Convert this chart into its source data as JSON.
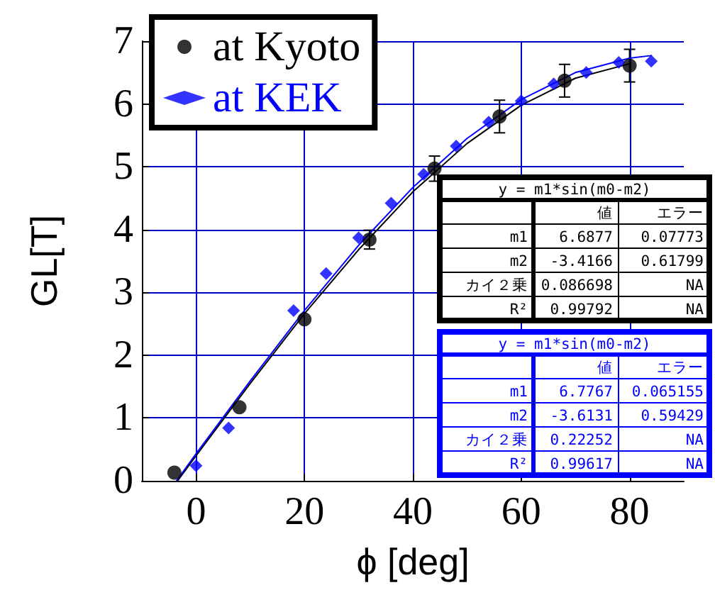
{
  "chart_data": {
    "type": "scatter",
    "xlabel": "ϕ [deg]",
    "ylabel": "GL[T]",
    "xlim": [
      -10,
      90
    ],
    "xticks": [
      0,
      20,
      40,
      60,
      80
    ],
    "ylim": [
      0,
      7
    ],
    "yticks": [
      0,
      1,
      2,
      3,
      4,
      5,
      6,
      7
    ],
    "grid": true,
    "legend": "top left",
    "series": [
      {
        "name": "at Kyoto",
        "color": "#000000",
        "marker": "circle",
        "x": [
          -4,
          8,
          20,
          32,
          44,
          56,
          68,
          80
        ],
        "values": [
          0.13,
          1.17,
          2.57,
          3.84,
          4.97,
          5.8,
          6.37,
          6.61
        ],
        "errors": [
          null,
          null,
          null,
          0.15,
          0.2,
          0.26,
          0.26,
          0.26
        ]
      },
      {
        "name": "at KEK",
        "color": "#0000ff",
        "marker": "diamond",
        "x": [
          0,
          6,
          18,
          24,
          30,
          36,
          42,
          48,
          54,
          60,
          66,
          72,
          78,
          84
        ],
        "values": [
          0.24,
          0.84,
          2.71,
          3.3,
          3.87,
          4.42,
          4.88,
          5.33,
          5.71,
          6.05,
          6.32,
          6.5,
          6.66,
          6.68
        ]
      },
      {
        "type": "line",
        "color": "#000000",
        "marker": "none",
        "x": [
          -3.4,
          0,
          10,
          20,
          30,
          40,
          50,
          60,
          70,
          80
        ],
        "values": [
          0,
          0.4,
          1.55,
          2.66,
          3.68,
          4.6,
          5.37,
          5.98,
          6.41,
          6.64
        ]
      },
      {
        "type": "line",
        "color": "#0000ff",
        "marker": "none",
        "x": [
          -3.6,
          0,
          10,
          20,
          30,
          40,
          50,
          60,
          70,
          80,
          84
        ],
        "values": [
          0,
          0.43,
          1.59,
          2.71,
          3.75,
          4.67,
          5.45,
          6.07,
          6.5,
          6.73,
          6.77
        ]
      }
    ],
    "annotations": [
      "y = m1*sin(m0-m2)",
      "値",
      "エラー",
      "m1",
      "6.6877",
      "0.07773",
      "m2",
      "-3.4166",
      "0.61799",
      "カイ２乗",
      "0.086698",
      "NA",
      "R²",
      "0.99792",
      "NA",
      "y = m1*sin(m0-m2)",
      "値",
      "エラー",
      "m1",
      "6.7767",
      "0.065155",
      "m2",
      "-3.6131",
      "0.59429",
      "カイ２乗",
      "0.22252",
      "NA",
      "R²",
      "0.99617",
      "NA"
    ]
  }
}
